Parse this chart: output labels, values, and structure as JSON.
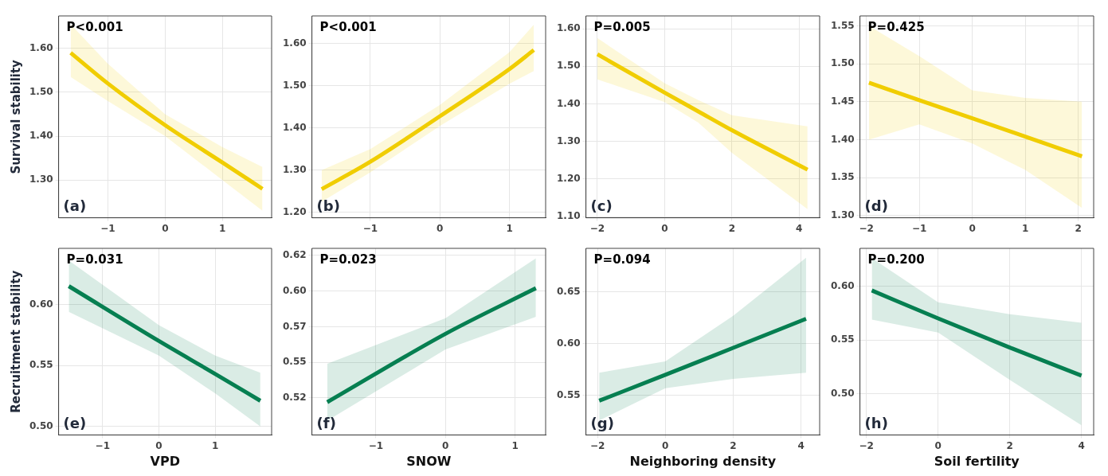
{
  "chart_data": [
    {
      "type": "line",
      "ylabel": "Survival stability",
      "annotations": [
        "P<0.001",
        "(a)"
      ],
      "xlim": [
        -1.86,
        1.86
      ],
      "xticks": [
        -1,
        0,
        1
      ],
      "ylim": [
        1.214,
        1.674
      ],
      "yticks": [
        {
          "value": 1.3,
          "label": "1.30"
        },
        {
          "value": 1.4,
          "label": "1.40"
        },
        {
          "value": 1.5,
          "label": "1.50"
        },
        {
          "value": 1.6,
          "label": "1.60"
        }
      ],
      "grid": true,
      "series": [
        {
          "color": "#f0cd00",
          "x": [
            -1.65,
            -1,
            0,
            1,
            1.7
          ],
          "values": [
            1.59,
            1.52,
            1.425,
            1.34,
            1.28
          ],
          "lower": [
            1.535,
            1.48,
            1.4,
            1.3,
            1.23
          ],
          "upper": [
            1.655,
            1.565,
            1.45,
            1.375,
            1.33
          ]
        }
      ]
    },
    {
      "type": "line",
      "annotations": [
        "P<0.001",
        "(b)"
      ],
      "xlim": [
        -1.84,
        1.52
      ],
      "xticks": [
        -1,
        0,
        1
      ],
      "ylim": [
        1.187,
        1.666
      ],
      "yticks": [
        {
          "value": 1.2,
          "label": "1.20"
        },
        {
          "value": 1.3,
          "label": "1.30"
        },
        {
          "value": 1.4,
          "label": "1.40"
        },
        {
          "value": 1.5,
          "label": "1.50"
        },
        {
          "value": 1.6,
          "label": "1.60"
        }
      ],
      "grid": true,
      "series": [
        {
          "color": "#f0cd00",
          "x": [
            -1.7,
            -1,
            0,
            1,
            1.35
          ],
          "values": [
            1.255,
            1.32,
            1.428,
            1.54,
            1.585
          ],
          "lower": [
            1.225,
            1.295,
            1.405,
            1.505,
            1.535
          ],
          "upper": [
            1.3,
            1.35,
            1.455,
            1.58,
            1.645
          ]
        }
      ]
    },
    {
      "type": "line",
      "annotations": [
        "P=0.005",
        "(c)"
      ],
      "xlim": [
        -2.34,
        4.61
      ],
      "xticks": [
        -2,
        0,
        2,
        4
      ],
      "ylim": [
        1.097,
        1.634
      ],
      "yticks": [
        {
          "value": 1.1,
          "label": "1.10"
        },
        {
          "value": 1.2,
          "label": "1.20"
        },
        {
          "value": 1.3,
          "label": "1.30"
        },
        {
          "value": 1.4,
          "label": "1.40"
        },
        {
          "value": 1.5,
          "label": "1.50"
        },
        {
          "value": 1.6,
          "label": "1.60"
        }
      ],
      "grid": true,
      "series": [
        {
          "color": "#f0cd00",
          "x": [
            -2,
            0,
            1,
            2,
            4.25
          ],
          "values": [
            1.532,
            1.43,
            1.38,
            1.33,
            1.225
          ],
          "lower": [
            1.465,
            1.405,
            1.35,
            1.27,
            1.12
          ],
          "upper": [
            1.575,
            1.455,
            1.41,
            1.37,
            1.34
          ]
        }
      ]
    },
    {
      "type": "line",
      "annotations": [
        "P=0.425",
        "(d)"
      ],
      "xlim": [
        -2.12,
        2.29
      ],
      "xticks": [
        -2,
        -1,
        0,
        1,
        2
      ],
      "ylim": [
        1.297,
        1.563
      ],
      "yticks": [
        {
          "value": 1.3,
          "label": "1.30"
        },
        1.35,
        {
          "value": 1.4,
          "label": "1.40"
        },
        1.45,
        {
          "value": 1.5,
          "label": "1.50"
        },
        1.55
      ],
      "grid": true,
      "series": [
        {
          "color": "#f0cd00",
          "x": [
            -1.95,
            -1,
            0,
            1,
            2.07
          ],
          "values": [
            1.475,
            1.452,
            1.428,
            1.404,
            1.378
          ],
          "lower": [
            1.4,
            1.42,
            1.395,
            1.36,
            1.31
          ],
          "upper": [
            1.55,
            1.51,
            1.465,
            1.455,
            1.45
          ]
        }
      ]
    },
    {
      "type": "line",
      "ylabel": "Recruitment stability",
      "xlabel": "VPD",
      "annotations": [
        "P=0.031",
        "(e)"
      ],
      "xlim": [
        -1.78,
        2.0
      ],
      "xticks": [
        -1,
        0,
        1
      ],
      "ylim": [
        0.493,
        0.646
      ],
      "yticks": [
        {
          "value": 0.5,
          "label": "0.50"
        },
        0.55,
        {
          "value": 0.6,
          "label": "0.60"
        }
      ],
      "grid": true,
      "series": [
        {
          "color": "#077f52",
          "x": [
            -1.6,
            0,
            1,
            1.8
          ],
          "values": [
            0.615,
            0.57,
            0.543,
            0.521
          ],
          "lower": [
            0.594,
            0.558,
            0.527,
            0.5
          ],
          "upper": [
            0.636,
            0.583,
            0.558,
            0.544
          ]
        }
      ]
    },
    {
      "type": "line",
      "xlabel": "SNOW",
      "annotations": [
        "P=0.023",
        "(f)"
      ],
      "xlim": [
        -1.92,
        1.44
      ],
      "xticks": [
        -1,
        0,
        1
      ],
      "ylim": [
        0.499,
        0.63
      ],
      "yticks": [
        {
          "value": 0.525,
          "label": "0.52"
        },
        {
          "value": 0.55,
          "label": "0.55"
        },
        {
          "value": 0.575,
          "label": "0.57"
        },
        {
          "value": 0.6,
          "label": "0.60"
        },
        {
          "value": 0.625,
          "label": "0.62"
        }
      ],
      "grid": true,
      "series": [
        {
          "color": "#077f52",
          "x": [
            -1.7,
            0,
            1.3
          ],
          "values": [
            0.522,
            0.57,
            0.602
          ],
          "lower": [
            0.509,
            0.559,
            0.582
          ],
          "upper": [
            0.549,
            0.581,
            0.623
          ]
        }
      ]
    },
    {
      "type": "line",
      "xlabel": "Neighboring density",
      "annotations": [
        "P=0.094",
        "(g)"
      ],
      "xlim": [
        -2.34,
        4.55
      ],
      "xticks": [
        -2,
        0,
        2,
        4
      ],
      "ylim": [
        0.512,
        0.692
      ],
      "yticks": [
        0.55,
        {
          "value": 0.6,
          "label": "0.60"
        },
        0.65
      ],
      "grid": true,
      "series": [
        {
          "color": "#077f52",
          "x": [
            -1.95,
            0,
            2,
            4.15
          ],
          "values": [
            0.545,
            0.57,
            0.596,
            0.624
          ],
          "lower": [
            0.526,
            0.557,
            0.566,
            0.572
          ],
          "upper": [
            0.572,
            0.583,
            0.627,
            0.683
          ]
        }
      ]
    },
    {
      "type": "line",
      "xlabel": "Soil fertility",
      "annotations": [
        "P=0.200",
        "(h)"
      ],
      "xlim": [
        -2.18,
        4.34
      ],
      "xticks": [
        -2,
        0,
        2,
        4
      ],
      "ylim": [
        0.462,
        0.635
      ],
      "yticks": [
        {
          "value": 0.5,
          "label": "0.50"
        },
        0.55,
        {
          "value": 0.6,
          "label": "0.60"
        }
      ],
      "grid": true,
      "series": [
        {
          "color": "#077f52",
          "x": [
            -1.85,
            0,
            2,
            4
          ],
          "values": [
            0.596,
            0.57,
            0.543,
            0.517
          ],
          "lower": [
            0.569,
            0.557,
            0.513,
            0.471
          ],
          "upper": [
            0.626,
            0.585,
            0.574,
            0.566
          ]
        }
      ]
    }
  ]
}
